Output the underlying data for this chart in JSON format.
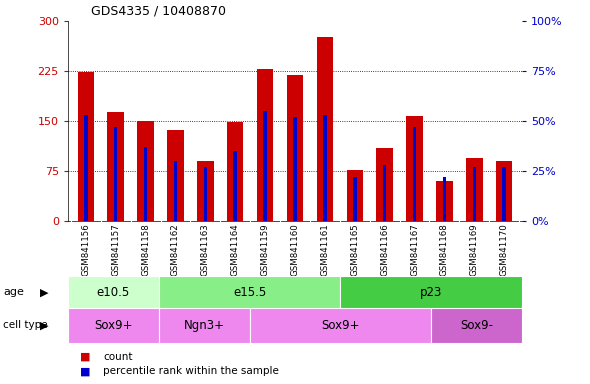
{
  "title": "GDS4335 / 10408870",
  "samples": [
    "GSM841156",
    "GSM841157",
    "GSM841158",
    "GSM841162",
    "GSM841163",
    "GSM841164",
    "GSM841159",
    "GSM841160",
    "GSM841161",
    "GSM841165",
    "GSM841166",
    "GSM841167",
    "GSM841168",
    "GSM841169",
    "GSM841170"
  ],
  "counts": [
    224,
    163,
    150,
    137,
    90,
    149,
    228,
    219,
    276,
    76,
    110,
    158,
    60,
    95,
    90
  ],
  "percentiles": [
    53,
    47,
    37,
    30,
    27,
    35,
    55,
    52,
    53,
    22,
    28,
    47,
    22,
    27,
    27
  ],
  "ylim_left": [
    0,
    300
  ],
  "ylim_right": [
    0,
    100
  ],
  "yticks_left": [
    0,
    75,
    150,
    225,
    300
  ],
  "yticks_right": [
    0,
    25,
    50,
    75,
    100
  ],
  "age_groups": [
    {
      "label": "e10.5",
      "start": 0,
      "end": 3,
      "color": "#ccffcc"
    },
    {
      "label": "e15.5",
      "start": 3,
      "end": 9,
      "color": "#88ee88"
    },
    {
      "label": "p23",
      "start": 9,
      "end": 15,
      "color": "#44cc44"
    }
  ],
  "cell_groups": [
    {
      "label": "Sox9+",
      "start": 0,
      "end": 3,
      "color": "#ee88ee"
    },
    {
      "label": "Ngn3+",
      "start": 3,
      "end": 6,
      "color": "#ee88ee"
    },
    {
      "label": "Sox9+",
      "start": 6,
      "end": 12,
      "color": "#ee88ee"
    },
    {
      "label": "Sox9-",
      "start": 12,
      "end": 15,
      "color": "#cc66cc"
    }
  ],
  "bar_color": "#cc0000",
  "pct_color": "#0000cc",
  "label_bg": "#cccccc",
  "plot_bg": "#ffffff",
  "legend_count_color": "#cc0000",
  "legend_pct_color": "#0000cc"
}
